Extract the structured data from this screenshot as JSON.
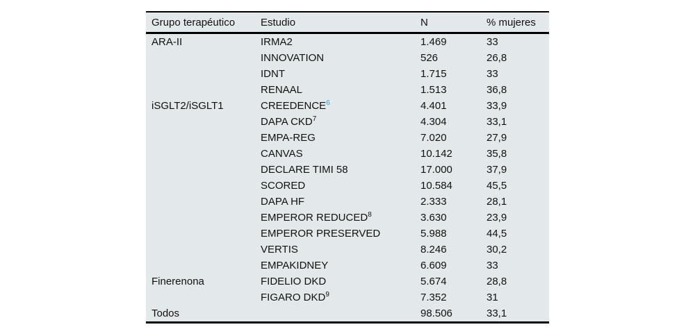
{
  "page": {
    "background": "#ffffff"
  },
  "table": {
    "background": "#e3e8ea",
    "rule_color": "#000000",
    "text_color": "#111111",
    "citation_link_color": "#36a0d9",
    "headers": [
      "Grupo terapéutico",
      "Estudio",
      "N",
      "% mujeres"
    ],
    "rows": [
      {
        "group": "ARA-II",
        "study": "IRMA2",
        "sup": "",
        "sup_style": "",
        "n": "1.469",
        "pct": "33"
      },
      {
        "group": "",
        "study": "INNOVATION",
        "sup": "",
        "sup_style": "",
        "n": "526",
        "pct": "26,8"
      },
      {
        "group": "",
        "study": "IDNT",
        "sup": "",
        "sup_style": "",
        "n": "1.715",
        "pct": "33"
      },
      {
        "group": "",
        "study": "RENAAL",
        "sup": "",
        "sup_style": "",
        "n": "1.513",
        "pct": "36,8"
      },
      {
        "group": "iSGLT2/iSGLT1",
        "study": "CREEDENCE",
        "sup": "6",
        "sup_style": "link",
        "n": "4.401",
        "pct": "33,9"
      },
      {
        "group": "",
        "study": "DAPA CKD",
        "sup": "7",
        "sup_style": "",
        "n": "4.304",
        "pct": "33,1"
      },
      {
        "group": "",
        "study": "EMPA-REG",
        "sup": "",
        "sup_style": "",
        "n": "7.020",
        "pct": "27,9"
      },
      {
        "group": "",
        "study": "CANVAS",
        "sup": "",
        "sup_style": "",
        "n": "10.142",
        "pct": "35,8"
      },
      {
        "group": "",
        "study": "DECLARE TIMI 58",
        "sup": "",
        "sup_style": "",
        "n": "17.000",
        "pct": "37,9"
      },
      {
        "group": "",
        "study": "SCORED",
        "sup": "",
        "sup_style": "",
        "n": "10.584",
        "pct": "45,5"
      },
      {
        "group": "",
        "study": "DAPA HF",
        "sup": "",
        "sup_style": "",
        "n": "2.333",
        "pct": "28,1"
      },
      {
        "group": "",
        "study": "EMPEROR REDUCED",
        "sup": "8",
        "sup_style": "",
        "n": "3.630",
        "pct": "23,9"
      },
      {
        "group": "",
        "study": "EMPEROR PRESERVED",
        "sup": "",
        "sup_style": "",
        "n": "5.988",
        "pct": "44,5"
      },
      {
        "group": "",
        "study": "VERTIS",
        "sup": "",
        "sup_style": "",
        "n": "8.246",
        "pct": "30,2"
      },
      {
        "group": "",
        "study": "EMPAKIDNEY",
        "sup": "",
        "sup_style": "",
        "n": "6.609",
        "pct": "33"
      },
      {
        "group": "Finerenona",
        "study": "FIDELIO DKD",
        "sup": "",
        "sup_style": "",
        "n": "5.674",
        "pct": "28,8"
      },
      {
        "group": "",
        "study": "FIGARO DKD",
        "sup": "9",
        "sup_style": "",
        "n": "7.352",
        "pct": "31"
      },
      {
        "group": "Todos",
        "study": "",
        "sup": "",
        "sup_style": "",
        "n": "98.506",
        "pct": "33,1"
      }
    ]
  }
}
